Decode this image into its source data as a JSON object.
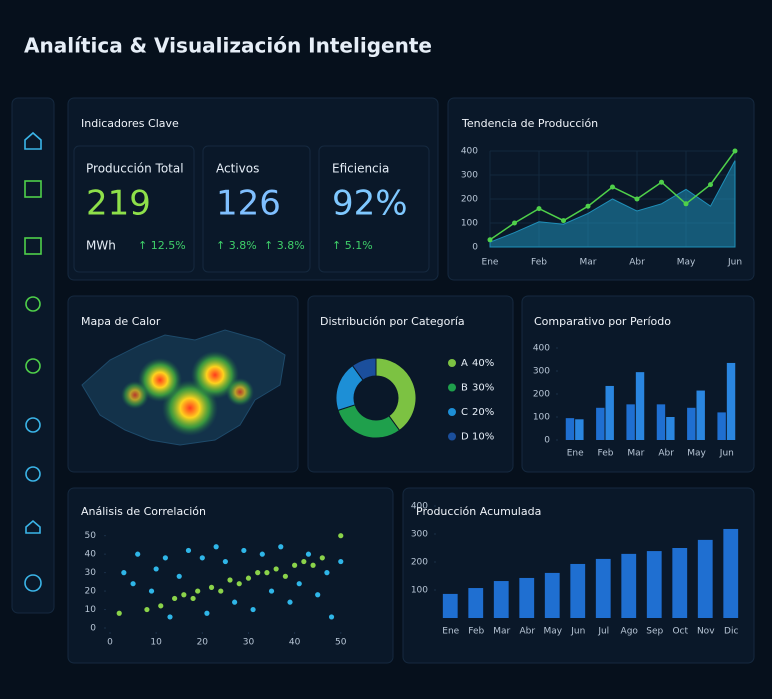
{
  "title": "Analítica & Visualización Inteligente",
  "kpi_panel": {
    "title": "Indicadores Clave",
    "cards": [
      {
        "label": "Producción Total",
        "value": "219",
        "unit": "MWh",
        "changes": [
          "↑ 12.5%"
        ],
        "color": "#8ee04a"
      },
      {
        "label": "Activos",
        "value": "126",
        "changes": [
          "↑ 3.8%",
          "↑ 3.8%"
        ],
        "color": "#7fbfff"
      },
      {
        "label": "Eficiencia",
        "value": "92%",
        "changes": [
          "↑ 5.1%"
        ],
        "color": "#7fc8ff"
      }
    ]
  },
  "chart_data": [
    {
      "type": "line",
      "title": "Tendencia de Producción",
      "x": [
        0,
        0.5,
        1,
        1.5,
        2,
        2.5,
        3,
        3.5,
        4,
        4.5,
        5
      ],
      "xticks": [
        {
          "value": 0,
          "label": "Ene"
        },
        {
          "value": 1,
          "label": "Feb"
        },
        {
          "value": 2,
          "label": "Mar"
        },
        {
          "value": 3,
          "label": "Abr"
        },
        {
          "value": 4,
          "label": "May"
        },
        {
          "value": 5,
          "label": "Jun"
        }
      ],
      "xlim": [
        0,
        5
      ],
      "ylim": [
        0,
        400
      ],
      "yticks": [
        0,
        100,
        200,
        300,
        400
      ],
      "grid": true,
      "series": [
        {
          "color": "#1f8fb8",
          "area": true,
          "values": [
            20,
            60,
            105,
            95,
            140,
            200,
            150,
            180,
            240,
            170,
            360
          ]
        },
        {
          "color": "#4fd04a",
          "values": [
            30,
            100,
            160,
            110,
            170,
            250,
            200,
            270,
            180,
            260,
            400
          ]
        }
      ]
    },
    {
      "type": "heatmap",
      "title": "Mapa de Calor"
    },
    {
      "type": "donut",
      "title": "Distribución por Categoría",
      "categories": [
        "A",
        "B",
        "C",
        "D"
      ],
      "values": [
        40,
        30,
        20,
        10
      ],
      "value_labels": [
        "40%",
        "30%",
        "20%",
        "10%"
      ],
      "colors": [
        "#7cc242",
        "#1fa04c",
        "#1d8fd6",
        "#1b4f9c"
      ]
    },
    {
      "type": "bar",
      "title": "Comparativo por Período",
      "categories": [
        "Ene",
        "Feb",
        "Mar",
        "Abr",
        "May",
        "Jun"
      ],
      "ylim": [
        0,
        400
      ],
      "yticks": [
        0,
        100,
        200,
        300,
        400
      ],
      "series": [
        {
          "color": "#1f6fd1",
          "values": [
            95,
            140,
            155,
            155,
            140,
            120
          ]
        },
        {
          "color": "#2a86e0",
          "values": [
            90,
            235,
            295,
            100,
            215,
            335
          ]
        }
      ]
    },
    {
      "type": "scatter",
      "title": "Análisis de Correlación",
      "xlim": [
        0,
        52
      ],
      "xticks": [
        0,
        10,
        20,
        30,
        40,
        50
      ],
      "ylim": [
        0,
        52
      ],
      "yticks": [
        0,
        10,
        20,
        30,
        40,
        50
      ],
      "series": [
        {
          "color": "#8bd34a",
          "x": [
            2,
            8,
            11,
            14,
            16,
            18,
            19,
            22,
            24,
            26,
            28,
            30,
            32,
            34,
            36,
            38,
            40,
            42,
            44,
            46,
            50
          ],
          "values": [
            8,
            10,
            12,
            16,
            18,
            16,
            20,
            22,
            20,
            26,
            24,
            27,
            30,
            30,
            32,
            28,
            34,
            36,
            34,
            38,
            50
          ]
        },
        {
          "color": "#2fb6e8",
          "x": [
            3,
            5,
            6,
            9,
            10,
            12,
            13,
            15,
            17,
            20,
            21,
            23,
            25,
            27,
            29,
            31,
            33,
            35,
            37,
            39,
            41,
            43,
            45,
            47,
            48,
            50
          ],
          "values": [
            30,
            24,
            40,
            20,
            32,
            38,
            6,
            28,
            42,
            38,
            8,
            44,
            36,
            14,
            42,
            10,
            40,
            20,
            44,
            14,
            24,
            40,
            18,
            30,
            6,
            36
          ]
        }
      ]
    },
    {
      "type": "bar",
      "title": "Producción Acumulada",
      "categories": [
        "Ene",
        "Feb",
        "Mar",
        "Abr",
        "May",
        "Jun",
        "Jul",
        "Ago",
        "Sep",
        "Oct",
        "Nov",
        "Dic"
      ],
      "ylim": [
        0,
        430
      ],
      "yticks": [
        100,
        200,
        300,
        400
      ],
      "series": [
        {
          "color": "#1f6fd1",
          "values": [
            86,
            107,
            132,
            143,
            161,
            193,
            211,
            229,
            239,
            250,
            279,
            318
          ]
        }
      ]
    }
  ]
}
